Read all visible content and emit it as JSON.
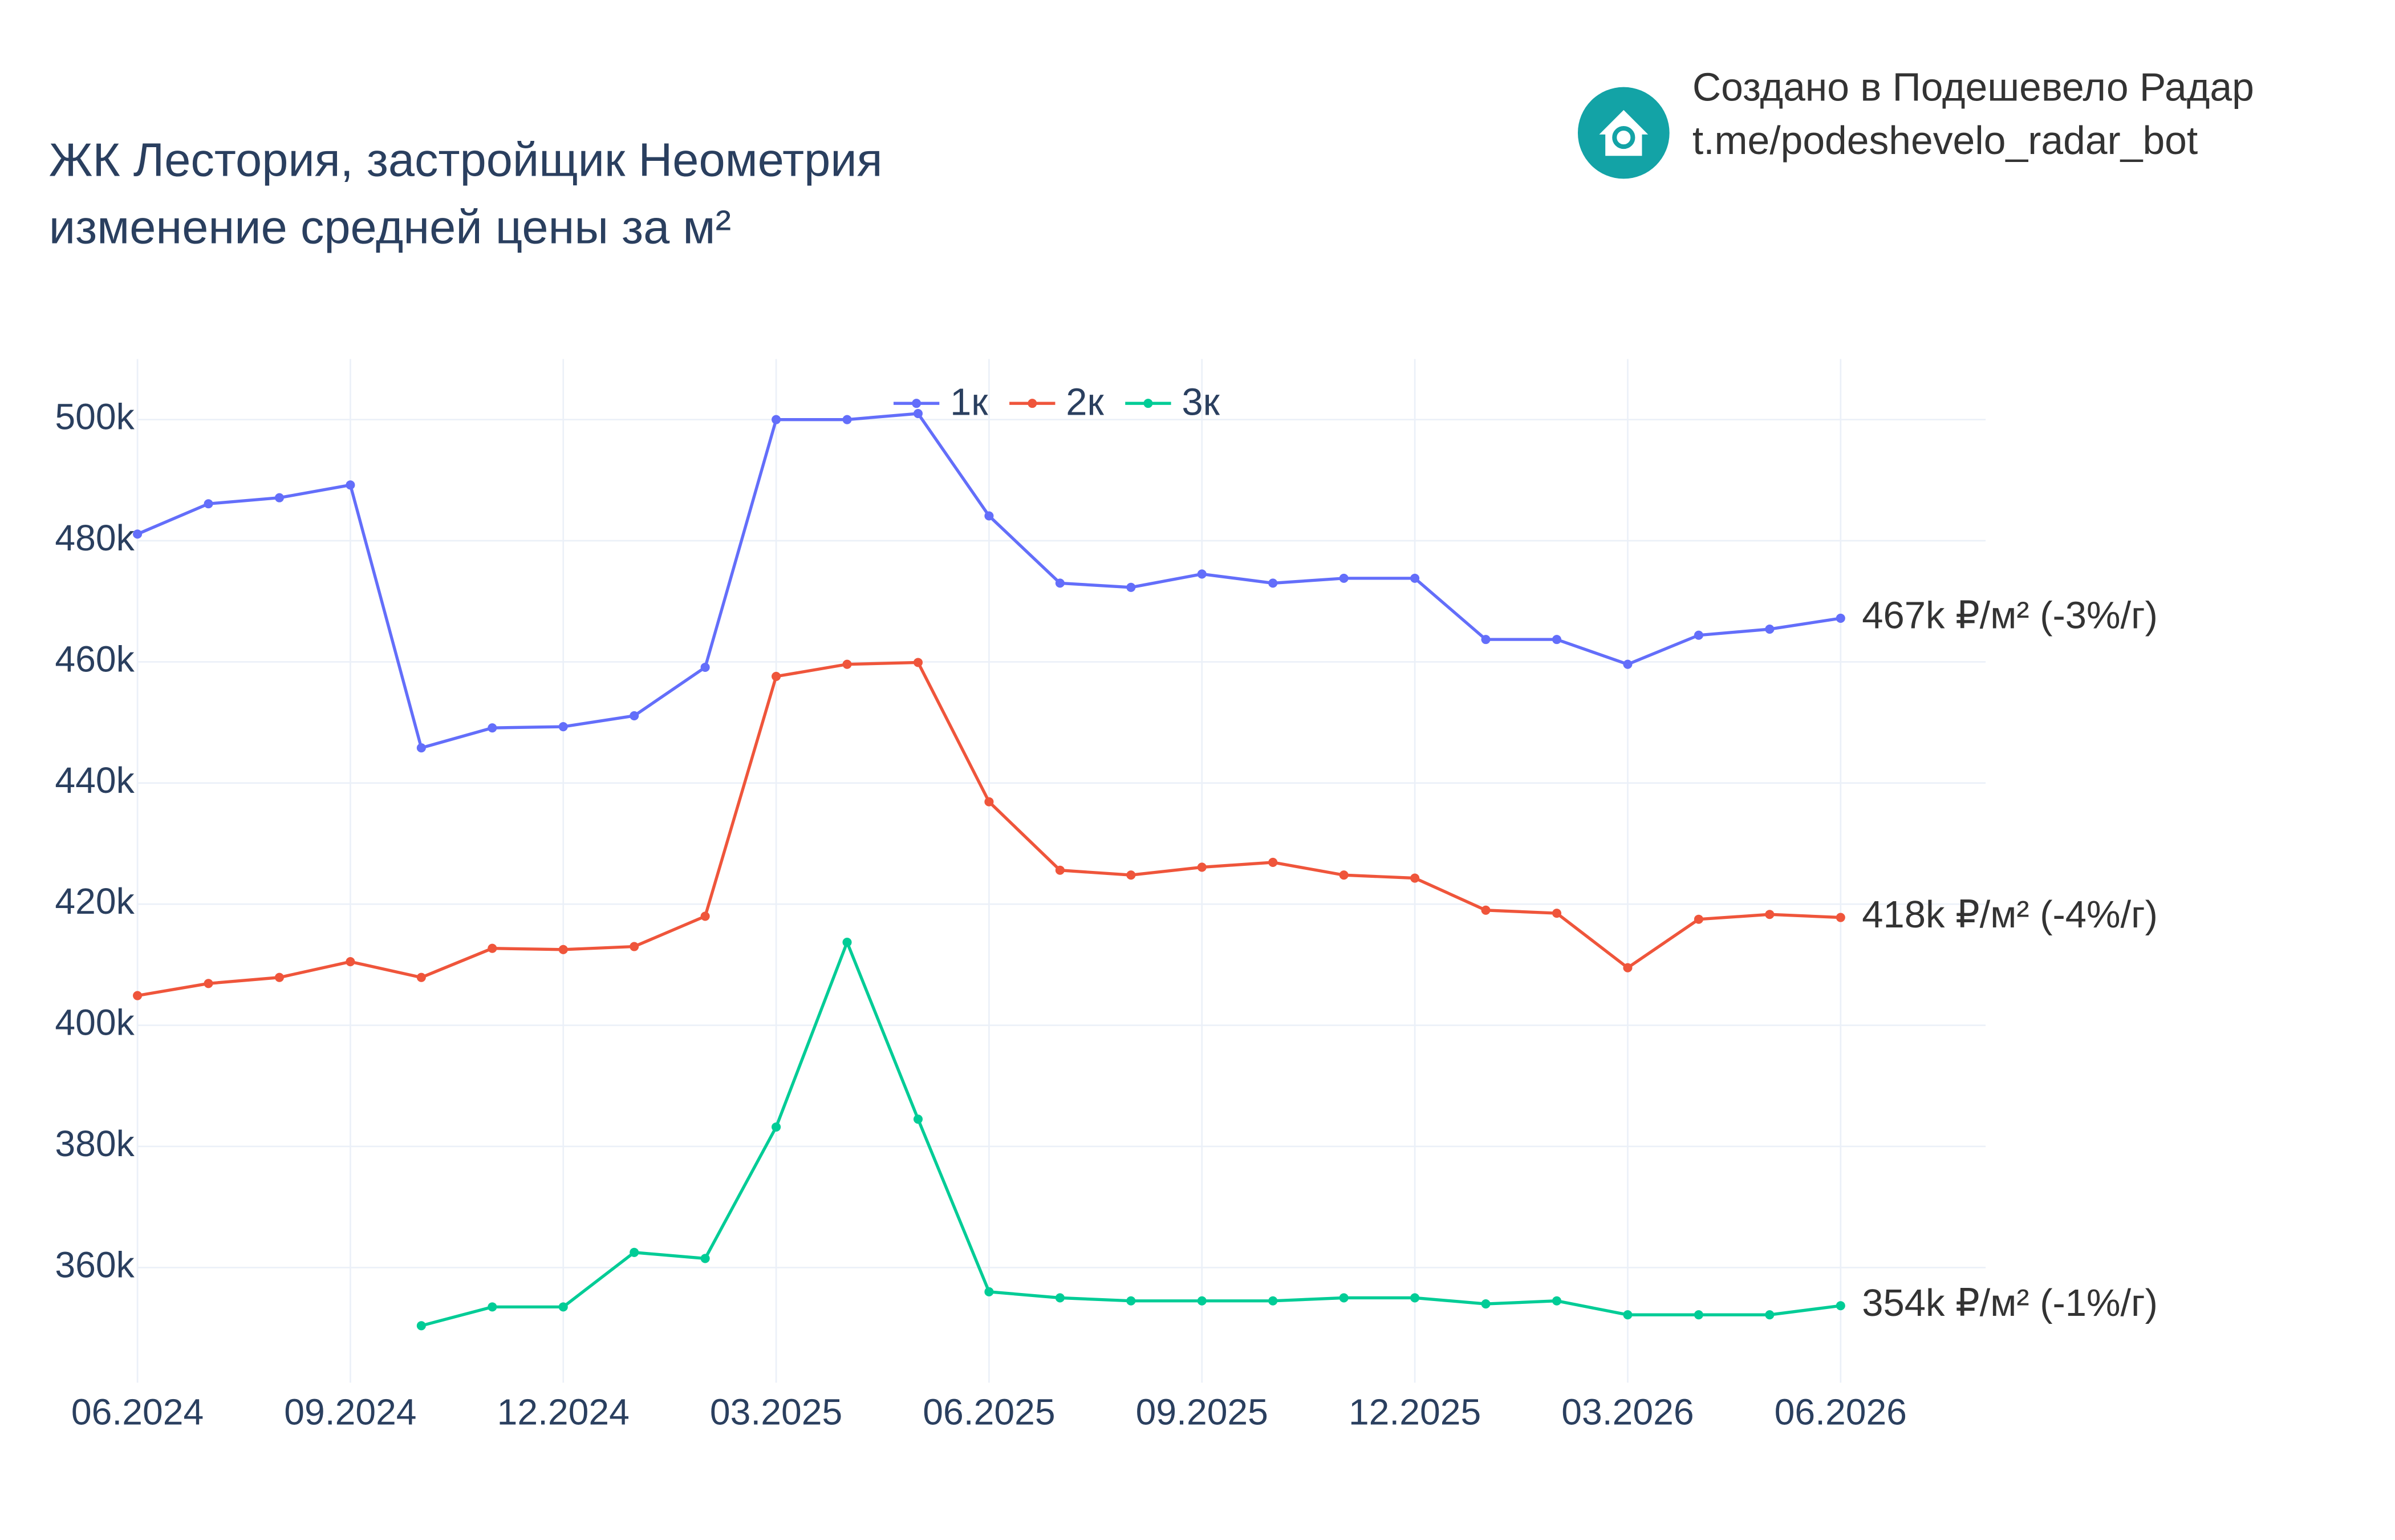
{
  "chart_data": {
    "type": "line",
    "title": "ЖК Лестория, застройщик Неометрия",
    "subtitle": "изменение средней цены за м²",
    "credit": [
      "Создано в Подешевело Радар",
      "t.me/podeshevelo_radar_bot"
    ],
    "categories": [
      "06.2024",
      null,
      null,
      "09.2024",
      null,
      null,
      "12.2024",
      null,
      null,
      "03.2025",
      null,
      null,
      "06.2025",
      null,
      null,
      "09.2025",
      null,
      null,
      "12.2025",
      null,
      null,
      "03.2026",
      null,
      null,
      "06.2026"
    ],
    "series": [
      {
        "name": "1к",
        "color": "#636efa",
        "end_label": "467k ₽/м² (-3%/г)",
        "values": [
          481100,
          486100,
          487100,
          489200,
          445800,
          449100,
          449300,
          451100,
          459100,
          500000,
          500000,
          501000,
          484100,
          473000,
          472300,
          474500,
          473000,
          473800,
          473800,
          463700,
          463700,
          459600,
          464400,
          465400,
          467200
        ]
      },
      {
        "name": "2к",
        "color": "#ef553b",
        "end_label": "418k ₽/м² (-4%/г)",
        "values": [
          404900,
          406900,
          407900,
          410500,
          407900,
          412700,
          412500,
          413000,
          418000,
          457600,
          459600,
          459900,
          436900,
          425600,
          424800,
          426100,
          426900,
          424800,
          424300,
          419000,
          418500,
          409500,
          417500,
          418300,
          417800
        ]
      },
      {
        "name": "3к",
        "color": "#00cc96",
        "end_label": "354k ₽/м² (-1%/г)",
        "values": [
          null,
          null,
          null,
          null,
          350400,
          353500,
          353500,
          362500,
          361500,
          383200,
          413700,
          384500,
          356000,
          355000,
          354500,
          354500,
          354500,
          355000,
          355000,
          354000,
          354500,
          352200,
          352200,
          352200,
          353700
        ]
      }
    ],
    "ylim": [
      341000,
      510000
    ],
    "yticks": [
      {
        "value": 360000,
        "label": "360k"
      },
      {
        "value": 380000,
        "label": "380k"
      },
      {
        "value": 400000,
        "label": "400k"
      },
      {
        "value": 420000,
        "label": "420k"
      },
      {
        "value": 440000,
        "label": "440k"
      },
      {
        "value": 460000,
        "label": "460k"
      },
      {
        "value": 480000,
        "label": "480k"
      },
      {
        "value": 500000,
        "label": "500k"
      }
    ],
    "grid": true
  }
}
